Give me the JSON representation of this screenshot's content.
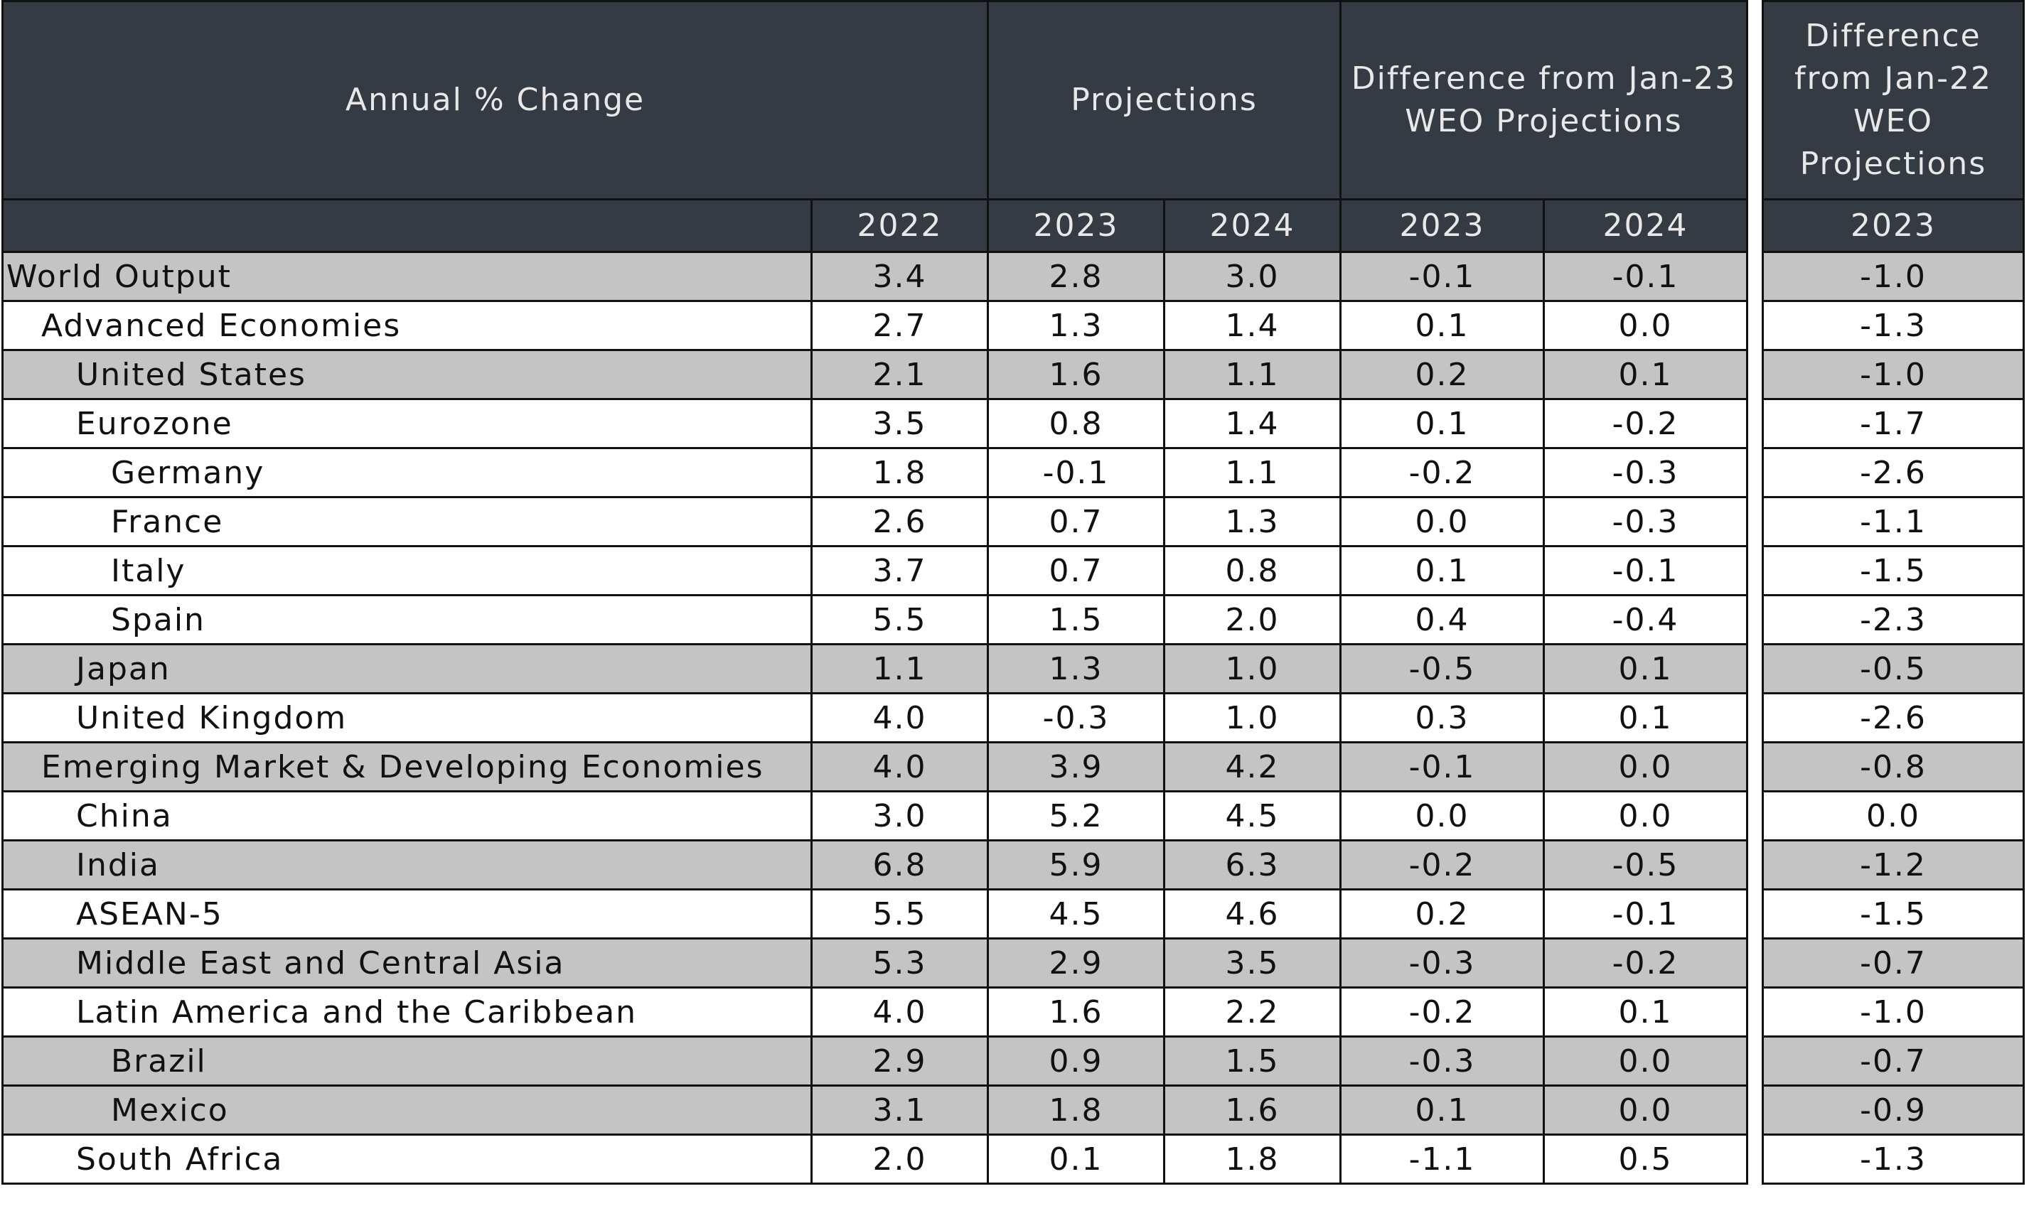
{
  "header": {
    "group_labels": [
      "Annual % Change",
      "Projections",
      "Difference from Jan-23 WEO Projections"
    ],
    "side_label": "Difference from Jan-22 WEO Projections",
    "years": [
      "2022",
      "2023",
      "2024",
      "2023",
      "2024"
    ],
    "side_year": "2023"
  },
  "table": {
    "rows": [
      [
        "World Output",
        "3.4",
        "2.8",
        "3.0",
        "-0.1",
        "-0.1",
        "-1.0"
      ],
      [
        "Advanced Economies",
        "2.7",
        "1.3",
        "1.4",
        "0.1",
        "0.0",
        "-1.3"
      ],
      [
        "United States",
        "2.1",
        "1.6",
        "1.1",
        "0.2",
        "0.1",
        "-1.0"
      ],
      [
        "Eurozone",
        "3.5",
        "0.8",
        "1.4",
        "0.1",
        "-0.2",
        "-1.7"
      ],
      [
        "Germany",
        "1.8",
        "-0.1",
        "1.1",
        "-0.2",
        "-0.3",
        "-2.6"
      ],
      [
        "France",
        "2.6",
        "0.7",
        "1.3",
        "0.0",
        "-0.3",
        "-1.1"
      ],
      [
        "Italy",
        "3.7",
        "0.7",
        "0.8",
        "0.1",
        "-0.1",
        "-1.5"
      ],
      [
        "Spain",
        "5.5",
        "1.5",
        "2.0",
        "0.4",
        "-0.4",
        "-2.3"
      ],
      [
        "Japan",
        "1.1",
        "1.3",
        "1.0",
        "-0.5",
        "0.1",
        "-0.5"
      ],
      [
        "United Kingdom",
        "4.0",
        "-0.3",
        "1.0",
        "0.3",
        "0.1",
        "-2.6"
      ],
      [
        "Emerging Market & Developing Economies",
        "4.0",
        "3.9",
        "4.2",
        "-0.1",
        "0.0",
        "-0.8"
      ],
      [
        "China",
        "3.0",
        "5.2",
        "4.5",
        "0.0",
        "0.0",
        "0.0"
      ],
      [
        "India",
        "6.8",
        "5.9",
        "6.3",
        "-0.2",
        "-0.5",
        "-1.2"
      ],
      [
        "ASEAN-5",
        "5.5",
        "4.5",
        "4.6",
        "0.2",
        "-0.1",
        "-1.5"
      ],
      [
        "Middle East and Central Asia",
        "5.3",
        "2.9",
        "3.5",
        "-0.3",
        "-0.2",
        "-0.7"
      ],
      [
        "Latin America and the Caribbean",
        "4.0",
        "1.6",
        "2.2",
        "-0.2",
        "0.1",
        "-1.0"
      ],
      [
        "Brazil",
        "2.9",
        "0.9",
        "1.5",
        "-0.3",
        "0.0",
        "-0.7"
      ],
      [
        "Mexico",
        "3.1",
        "1.8",
        "1.6",
        "0.1",
        "0.0",
        "-0.9"
      ],
      [
        "South Africa",
        "2.0",
        "0.1",
        "1.8",
        "-1.1",
        "0.5",
        "-1.3"
      ]
    ]
  }
}
